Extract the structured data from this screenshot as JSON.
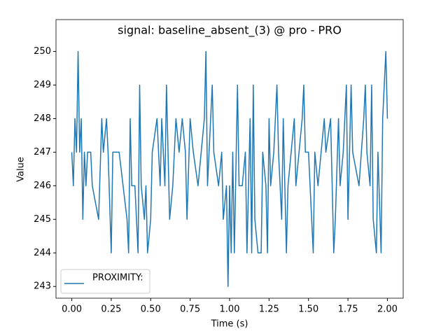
{
  "chart_data": {
    "type": "line",
    "title": "signal: baseline_absent_(3) @ pro - PRO",
    "x_label": "Time (s)",
    "y_label": "Value",
    "x": [
      0.0,
      0.01,
      0.02,
      0.03,
      0.04,
      0.05,
      0.06,
      0.07,
      0.08,
      0.09,
      0.1,
      0.12,
      0.13,
      0.17,
      0.19,
      0.2,
      0.22,
      0.23,
      0.25,
      0.26,
      0.3,
      0.35,
      0.36,
      0.37,
      0.38,
      0.4,
      0.42,
      0.43,
      0.44,
      0.46,
      0.47,
      0.48,
      0.5,
      0.51,
      0.54,
      0.56,
      0.57,
      0.58,
      0.59,
      0.6,
      0.62,
      0.64,
      0.66,
      0.68,
      0.7,
      0.72,
      0.73,
      0.75,
      0.77,
      0.8,
      0.84,
      0.85,
      0.86,
      0.89,
      0.9,
      0.93,
      0.95,
      0.96,
      0.98,
      0.99,
      1.0,
      1.01,
      1.02,
      1.03,
      1.05,
      1.06,
      1.08,
      1.1,
      1.11,
      1.13,
      1.14,
      1.15,
      1.16,
      1.18,
      1.2,
      1.21,
      1.23,
      1.24,
      1.25,
      1.26,
      1.28,
      1.3,
      1.31,
      1.33,
      1.34,
      1.36,
      1.37,
      1.39,
      1.41,
      1.42,
      1.44,
      1.46,
      1.47,
      1.48,
      1.5,
      1.53,
      1.54,
      1.56,
      1.58,
      1.6,
      1.61,
      1.64,
      1.66,
      1.67,
      1.69,
      1.7,
      1.72,
      1.74,
      1.75,
      1.77,
      1.78,
      1.82,
      1.85,
      1.86,
      1.87,
      1.89,
      1.9,
      1.91,
      1.93,
      1.94,
      1.96,
      1.97,
      1.99,
      2.0
    ],
    "series": [
      {
        "name": "PROXIMITY:",
        "color": "#1f77b4",
        "values": [
          247,
          246,
          248,
          247,
          250,
          247,
          248,
          245,
          247,
          246,
          247,
          247,
          246,
          245,
          248,
          247,
          248,
          247,
          244,
          247,
          247,
          245,
          244,
          248,
          246,
          246,
          244,
          249,
          246,
          245,
          246,
          244,
          245,
          247,
          248,
          246,
          248,
          247,
          246,
          249,
          245,
          246,
          248,
          247,
          248,
          247,
          245,
          248,
          247,
          246,
          248,
          250,
          246,
          249,
          247,
          246,
          247,
          245,
          246,
          243,
          246,
          244,
          247,
          244,
          249,
          246,
          246,
          247,
          244,
          248,
          244,
          249,
          245,
          244,
          244,
          247,
          246,
          244,
          248,
          246,
          247,
          249,
          247,
          245,
          248,
          244,
          246,
          247,
          248,
          246,
          247,
          248,
          249,
          247,
          247,
          244,
          247,
          246,
          247,
          248,
          247,
          248,
          244,
          245,
          248,
          246,
          247,
          249,
          245,
          249,
          247,
          246,
          248,
          249,
          247,
          246,
          249,
          245,
          244,
          247,
          244,
          248,
          250,
          248
        ]
      }
    ],
    "xlim": [
      -0.1,
      2.1
    ],
    "xticks": [
      {
        "value": 0,
        "label": "0.00"
      },
      {
        "value": 0.25,
        "label": "0.25"
      },
      {
        "value": 0.5,
        "label": "0.50"
      },
      {
        "value": 0.75,
        "label": "0.75"
      },
      {
        "value": 1,
        "label": "1.00"
      },
      {
        "value": 1.25,
        "label": "1.25"
      },
      {
        "value": 1.5,
        "label": "1.50"
      },
      {
        "value": 1.75,
        "label": "1.75"
      },
      {
        "value": 2,
        "label": "2.00"
      }
    ],
    "ylim": [
      242.65,
      250.95
    ],
    "yticks": [
      243,
      244,
      245,
      246,
      247,
      248,
      249,
      250
    ],
    "legend": "lower left"
  }
}
